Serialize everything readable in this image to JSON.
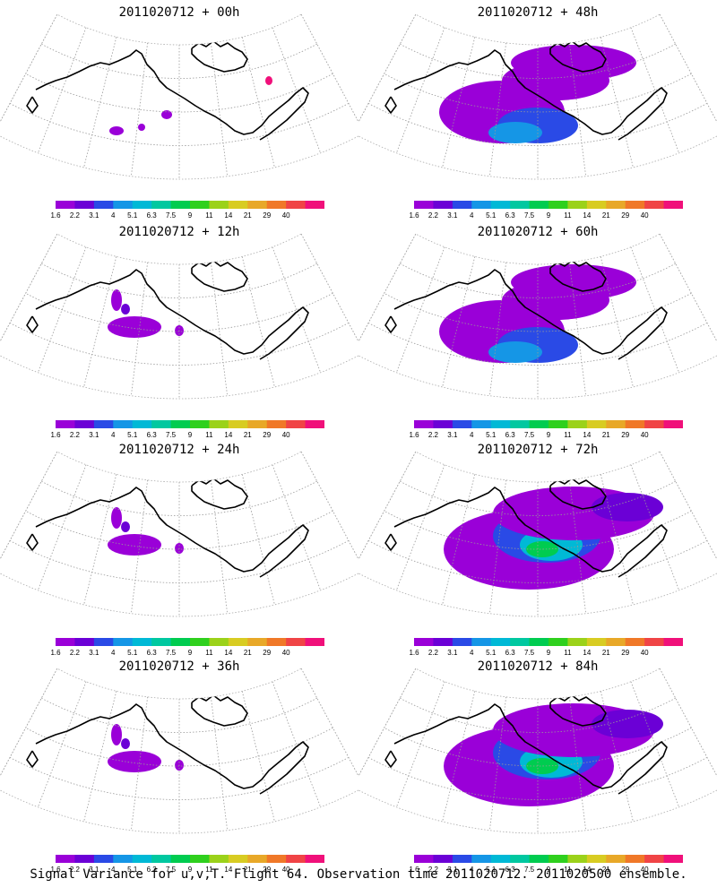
{
  "figure": {
    "footer": "Signal Variance for u,v,T. Flight 64. Observation time 2011020712. 2011020500 ensemble.",
    "colorbar_labels": [
      "1.6",
      "2.2",
      "3.1",
      "4",
      "5.1",
      "6.3",
      "7.5",
      "9",
      "11",
      "14",
      "21",
      "29",
      "40"
    ],
    "colorbar_colors": [
      "#9a00d8",
      "#6b00d6",
      "#2a4ae6",
      "#1596e6",
      "#00b9d6",
      "#00c8a0",
      "#00cc50",
      "#2fd01e",
      "#9bd21a",
      "#d8cc22",
      "#e8a828",
      "#f07828",
      "#f04446",
      "#f0107a"
    ],
    "panels": [
      {
        "title": "2011020712 + 00h",
        "intensity": "trace"
      },
      {
        "title": "2011020712 + 48h",
        "intensity": "moderate"
      },
      {
        "title": "2011020712 + 12h",
        "intensity": "low"
      },
      {
        "title": "2011020712 + 60h",
        "intensity": "moderate"
      },
      {
        "title": "2011020712 + 24h",
        "intensity": "low"
      },
      {
        "title": "2011020712 + 72h",
        "intensity": "high"
      },
      {
        "title": "2011020712 + 36h",
        "intensity": "low"
      },
      {
        "title": "2011020712 + 84h",
        "intensity": "high"
      }
    ]
  }
}
